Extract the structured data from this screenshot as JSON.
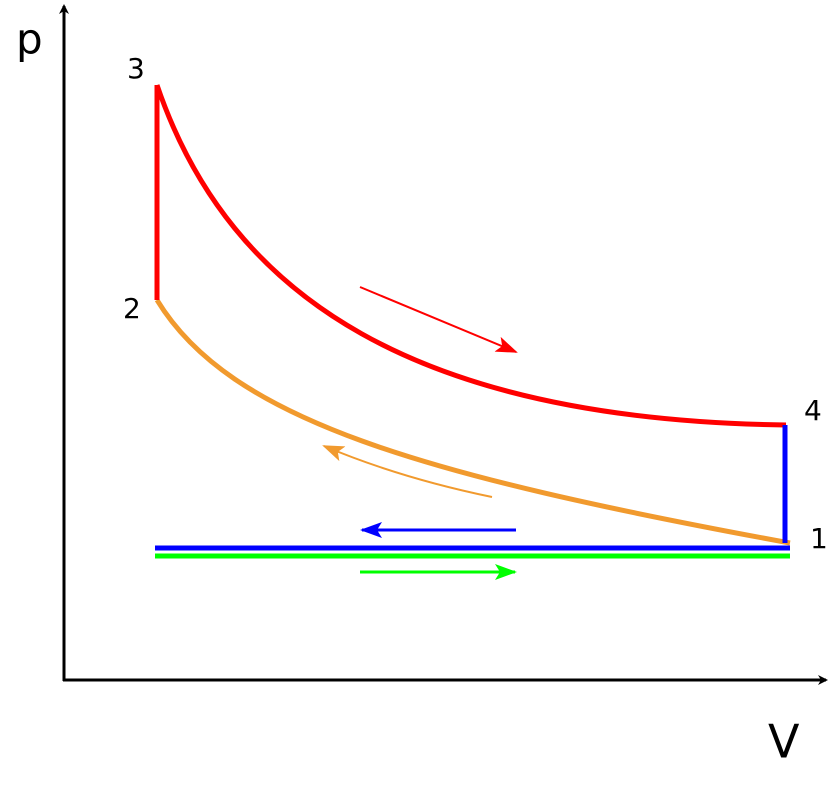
{
  "axes": {
    "y_label": "p",
    "x_label": "V"
  },
  "points": [
    {
      "label": "1"
    },
    {
      "label": "2"
    },
    {
      "label": "3"
    },
    {
      "label": "4"
    }
  ]
}
